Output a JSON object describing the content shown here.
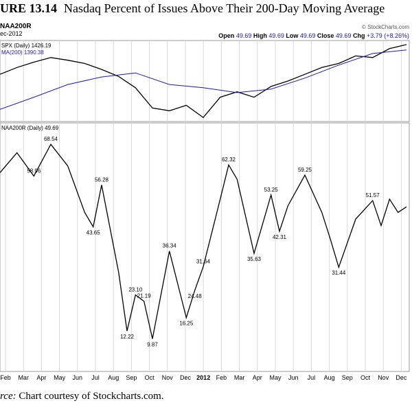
{
  "figure": {
    "number": "URE 13.14",
    "title": "Nasdaq Percent of Issues Above Their 200-Day Moving Average",
    "caption_label": "rce:",
    "caption_text": "Chart courtesy of Stockcharts.com."
  },
  "header": {
    "symbol": "NAA200R",
    "date": "ec-2012",
    "credit": "© StockCharts.com",
    "quote": [
      {
        "label": "Open",
        "value": "49.69"
      },
      {
        "label": "High",
        "value": "49.69"
      },
      {
        "label": "Low",
        "value": "49.69"
      },
      {
        "label": "Close",
        "value": "49.69"
      },
      {
        "label": "Chg",
        "value": "+3.79 (+8.26%)"
      }
    ]
  },
  "colors": {
    "price": "#000000",
    "ma": "#1a1aa8",
    "grid": "#d8d8d8",
    "quote_value": "#1a1aa8"
  },
  "chart_data": [
    {
      "type": "line",
      "panel": "upper",
      "series": [
        {
          "name": "SPX (Daily) 1426.19",
          "color": "#000000",
          "x": [
            0,
            1,
            2,
            3,
            4,
            5,
            6,
            7,
            8,
            9,
            10,
            11,
            12,
            13,
            14,
            15,
            16,
            17,
            18,
            19,
            20,
            21,
            22,
            23,
            24
          ],
          "values": [
            1300,
            1325,
            1345,
            1362,
            1352,
            1340,
            1318,
            1292,
            1250,
            1175,
            1165,
            1185,
            1140,
            1215,
            1235,
            1215,
            1255,
            1275,
            1300,
            1325,
            1340,
            1368,
            1362,
            1395,
            1410
          ]
        },
        {
          "name": "MA(200) 1390.38",
          "color": "#1a1aa8",
          "x": [
            0,
            2,
            4,
            6,
            8,
            10,
            12,
            14,
            16,
            18,
            20,
            22,
            24
          ],
          "values": [
            1170,
            1215,
            1262,
            1290,
            1305,
            1262,
            1250,
            1232,
            1245,
            1286,
            1334,
            1377,
            1390
          ]
        }
      ]
    },
    {
      "type": "line",
      "panel": "lower",
      "series": [
        {
          "name": "NAA200R (Daily) 49.69",
          "color": "#000000",
          "x": [
            0,
            1,
            2,
            3,
            4,
            5,
            5.5,
            6,
            7,
            7.5,
            8,
            8.5,
            9,
            10,
            11,
            11.5,
            12,
            13,
            13.5,
            14,
            15,
            16,
            16.5,
            17,
            18,
            19,
            19.5,
            20,
            21,
            22,
            22.5,
            23,
            23.5,
            24
          ],
          "values": [
            60,
            66,
            58.96,
            68.54,
            62,
            48,
            43.65,
            56.28,
            30,
            12.22,
            23.1,
            21.19,
            9.87,
            36.34,
            16.25,
            24.48,
            31.64,
            52,
            62.32,
            58,
            35.63,
            53.25,
            42.31,
            50,
            59.25,
            48,
            40,
            31.44,
            46,
            51.57,
            44,
            52,
            48,
            49.69
          ]
        }
      ],
      "annotations": [
        {
          "label": "58.96",
          "x": 2,
          "y": 58.96
        },
        {
          "label": "68.54",
          "x": 3,
          "y": 68.54
        },
        {
          "label": "56.28",
          "x": 6,
          "y": 56.28
        },
        {
          "label": "43.65",
          "x": 5.5,
          "y": 43.65
        },
        {
          "label": "23.10",
          "x": 8,
          "y": 23.1
        },
        {
          "label": "21.19",
          "x": 8.5,
          "y": 21.19
        },
        {
          "label": "12.22",
          "x": 7.5,
          "y": 12.22
        },
        {
          "label": "9.87",
          "x": 9,
          "y": 9.87
        },
        {
          "label": "36.34",
          "x": 10,
          "y": 36.34
        },
        {
          "label": "31.64",
          "x": 12,
          "y": 31.64
        },
        {
          "label": "24.48",
          "x": 11.5,
          "y": 24.48
        },
        {
          "label": "16.25",
          "x": 11,
          "y": 16.25
        },
        {
          "label": "62.32",
          "x": 13.5,
          "y": 62.32
        },
        {
          "label": "35.63",
          "x": 15,
          "y": 35.63
        },
        {
          "label": "53.25",
          "x": 16,
          "y": 53.25
        },
        {
          "label": "42.31",
          "x": 16.5,
          "y": 42.31
        },
        {
          "label": "59.25",
          "x": 18,
          "y": 59.25
        },
        {
          "label": "31.44",
          "x": 20,
          "y": 31.44
        },
        {
          "label": "51.57",
          "x": 22,
          "y": 51.57
        }
      ],
      "x_tick_labels": [
        "Feb",
        "Mar",
        "Apr",
        "May",
        "Jun",
        "Jul",
        "Aug",
        "Sep",
        "Oct",
        "Nov",
        "Dec",
        "2012",
        "Feb",
        "Mar",
        "Apr",
        "May",
        "Jun",
        "Jul",
        "Aug",
        "Sep",
        "Oct",
        "Nov",
        "Dec"
      ],
      "grid": true
    }
  ]
}
